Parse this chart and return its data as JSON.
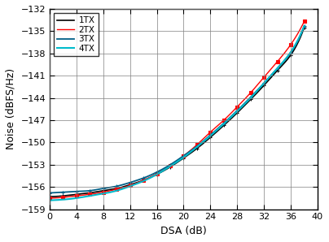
{
  "xlabel": "DSA (dB)",
  "ylabel": "Noise (dBFS/Hz)",
  "xlim": [
    0,
    40
  ],
  "ylim": [
    -159,
    -132
  ],
  "xticks": [
    0,
    4,
    8,
    12,
    16,
    20,
    24,
    28,
    32,
    36,
    40
  ],
  "yticks": [
    -159,
    -156,
    -153,
    -150,
    -147,
    -144,
    -141,
    -138,
    -135,
    -132
  ],
  "series": [
    {
      "label": "1TX",
      "color": "#000000",
      "marker": "+",
      "linewidth": 1.2,
      "x": [
        0,
        2,
        4,
        6,
        8,
        10,
        12,
        14,
        16,
        18,
        20,
        22,
        24,
        26,
        28,
        30,
        32,
        34,
        36,
        38
      ],
      "y": [
        -157.3,
        -157.2,
        -157.0,
        -156.8,
        -156.5,
        -156.2,
        -155.7,
        -155.1,
        -154.3,
        -153.3,
        -152.1,
        -150.8,
        -149.3,
        -147.7,
        -146.0,
        -144.2,
        -142.3,
        -140.3,
        -138.2,
        -134.5
      ]
    },
    {
      "label": "2TX",
      "color": "#ff0000",
      "marker": "s",
      "linewidth": 1.0,
      "x": [
        0,
        2,
        4,
        6,
        8,
        10,
        12,
        14,
        16,
        18,
        20,
        22,
        24,
        26,
        28,
        30,
        32,
        34,
        36,
        38
      ],
      "y": [
        -157.5,
        -157.4,
        -157.2,
        -157.0,
        -156.7,
        -156.3,
        -155.8,
        -155.1,
        -154.2,
        -153.1,
        -151.8,
        -150.3,
        -148.6,
        -147.0,
        -145.2,
        -143.3,
        -141.2,
        -139.1,
        -136.8,
        -133.7
      ]
    },
    {
      "label": "3TX",
      "color": "#005f87",
      "marker": "+",
      "linewidth": 1.3,
      "x": [
        0,
        2,
        4,
        6,
        8,
        10,
        12,
        14,
        16,
        18,
        20,
        22,
        24,
        26,
        28,
        30,
        32,
        34,
        36,
        38
      ],
      "y": [
        -156.8,
        -156.7,
        -156.6,
        -156.5,
        -156.2,
        -155.9,
        -155.4,
        -154.8,
        -154.0,
        -153.0,
        -151.8,
        -150.5,
        -149.0,
        -147.4,
        -145.7,
        -143.9,
        -142.0,
        -140.0,
        -137.9,
        -134.3
      ]
    },
    {
      "label": "4TX",
      "color": "#00bbcc",
      "marker": null,
      "linewidth": 1.5,
      "x": [
        0,
        2,
        4,
        6,
        8,
        10,
        12,
        14,
        16,
        18,
        20,
        22,
        24,
        26,
        28,
        30,
        32,
        34,
        36,
        38
      ],
      "y": [
        -157.8,
        -157.7,
        -157.5,
        -157.2,
        -156.9,
        -156.5,
        -155.9,
        -155.2,
        -154.3,
        -153.2,
        -152.0,
        -150.6,
        -149.1,
        -147.5,
        -145.8,
        -144.0,
        -142.0,
        -140.0,
        -137.8,
        -134.3
      ]
    }
  ],
  "legend_loc": "upper left",
  "grid_color": "#808080",
  "background_color": "#ffffff"
}
